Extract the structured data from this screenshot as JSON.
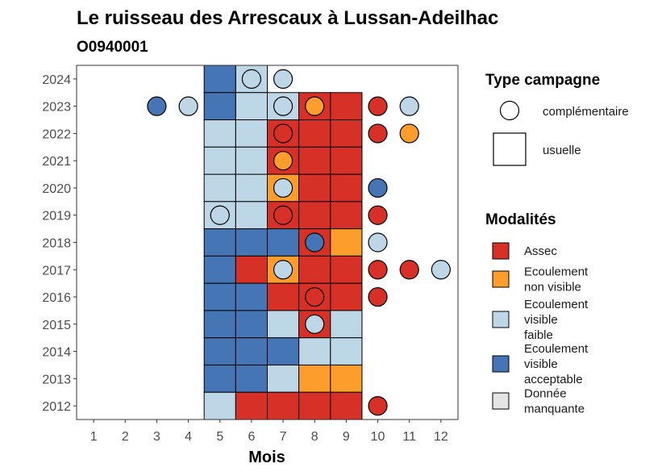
{
  "chart_data": {
    "type": "heatmap",
    "title": "Le ruisseau des Arrescaux à Lussan-Adeilhac",
    "subtitle": "O0940001",
    "xlabel": "Mois",
    "ylabel": "",
    "x_ticks": [
      1,
      2,
      3,
      4,
      5,
      6,
      7,
      8,
      9,
      10,
      11,
      12
    ],
    "y_ticks": [
      2012,
      2013,
      2014,
      2015,
      2016,
      2017,
      2018,
      2019,
      2020,
      2021,
      2022,
      2023,
      2024
    ],
    "legend_campagne": {
      "title": "Type campagne",
      "items": [
        {
          "key": "complementaire",
          "label": "complémentaire",
          "shape": "circle"
        },
        {
          "key": "usuelle",
          "label": "usuelle",
          "shape": "square"
        }
      ]
    },
    "legend_modalites": {
      "title": "Modalités",
      "items": [
        {
          "key": "assec",
          "label": [
            "Assec"
          ],
          "color": "#d73027"
        },
        {
          "key": "nonvisible",
          "label": [
            "Ecoulement",
            "non visible"
          ],
          "color": "#fc9d2c"
        },
        {
          "key": "faible",
          "label": [
            "Ecoulement",
            "visible",
            "faible"
          ],
          "color": "#bdd7e7"
        },
        {
          "key": "acceptable",
          "label": [
            "Ecoulement",
            "visible",
            "acceptable"
          ],
          "color": "#4575b4"
        },
        {
          "key": "manquante",
          "label": [
            "Donnée",
            "manquante"
          ],
          "color": "#e5e5e5"
        }
      ]
    },
    "usuelle": [
      {
        "year": 2024,
        "month": 5,
        "value": "acceptable"
      },
      {
        "year": 2024,
        "month": 6,
        "value": "faible"
      },
      {
        "year": 2023,
        "month": 5,
        "value": "acceptable"
      },
      {
        "year": 2023,
        "month": 6,
        "value": "faible"
      },
      {
        "year": 2023,
        "month": 7,
        "value": "faible"
      },
      {
        "year": 2023,
        "month": 8,
        "value": "assec"
      },
      {
        "year": 2023,
        "month": 9,
        "value": "assec"
      },
      {
        "year": 2022,
        "month": 5,
        "value": "faible"
      },
      {
        "year": 2022,
        "month": 6,
        "value": "faible"
      },
      {
        "year": 2022,
        "month": 7,
        "value": "assec"
      },
      {
        "year": 2022,
        "month": 8,
        "value": "assec"
      },
      {
        "year": 2022,
        "month": 9,
        "value": "assec"
      },
      {
        "year": 2021,
        "month": 5,
        "value": "faible"
      },
      {
        "year": 2021,
        "month": 6,
        "value": "faible"
      },
      {
        "year": 2021,
        "month": 7,
        "value": "assec"
      },
      {
        "year": 2021,
        "month": 8,
        "value": "assec"
      },
      {
        "year": 2021,
        "month": 9,
        "value": "assec"
      },
      {
        "year": 2020,
        "month": 5,
        "value": "faible"
      },
      {
        "year": 2020,
        "month": 6,
        "value": "faible"
      },
      {
        "year": 2020,
        "month": 7,
        "value": "nonvisible"
      },
      {
        "year": 2020,
        "month": 8,
        "value": "assec"
      },
      {
        "year": 2020,
        "month": 9,
        "value": "assec"
      },
      {
        "year": 2019,
        "month": 5,
        "value": "faible"
      },
      {
        "year": 2019,
        "month": 6,
        "value": "faible"
      },
      {
        "year": 2019,
        "month": 7,
        "value": "assec"
      },
      {
        "year": 2019,
        "month": 8,
        "value": "assec"
      },
      {
        "year": 2019,
        "month": 9,
        "value": "assec"
      },
      {
        "year": 2018,
        "month": 5,
        "value": "acceptable"
      },
      {
        "year": 2018,
        "month": 6,
        "value": "acceptable"
      },
      {
        "year": 2018,
        "month": 7,
        "value": "acceptable"
      },
      {
        "year": 2018,
        "month": 8,
        "value": "assec"
      },
      {
        "year": 2018,
        "month": 9,
        "value": "nonvisible"
      },
      {
        "year": 2017,
        "month": 5,
        "value": "acceptable"
      },
      {
        "year": 2017,
        "month": 6,
        "value": "assec"
      },
      {
        "year": 2017,
        "month": 7,
        "value": "nonvisible"
      },
      {
        "year": 2017,
        "month": 8,
        "value": "assec"
      },
      {
        "year": 2017,
        "month": 9,
        "value": "assec"
      },
      {
        "year": 2016,
        "month": 5,
        "value": "acceptable"
      },
      {
        "year": 2016,
        "month": 6,
        "value": "acceptable"
      },
      {
        "year": 2016,
        "month": 7,
        "value": "assec"
      },
      {
        "year": 2016,
        "month": 8,
        "value": "assec"
      },
      {
        "year": 2016,
        "month": 9,
        "value": "assec"
      },
      {
        "year": 2015,
        "month": 5,
        "value": "acceptable"
      },
      {
        "year": 2015,
        "month": 6,
        "value": "acceptable"
      },
      {
        "year": 2015,
        "month": 7,
        "value": "faible"
      },
      {
        "year": 2015,
        "month": 8,
        "value": "assec"
      },
      {
        "year": 2015,
        "month": 9,
        "value": "faible"
      },
      {
        "year": 2014,
        "month": 5,
        "value": "acceptable"
      },
      {
        "year": 2014,
        "month": 6,
        "value": "acceptable"
      },
      {
        "year": 2014,
        "month": 7,
        "value": "acceptable"
      },
      {
        "year": 2014,
        "month": 8,
        "value": "faible"
      },
      {
        "year": 2014,
        "month": 9,
        "value": "faible"
      },
      {
        "year": 2013,
        "month": 5,
        "value": "acceptable"
      },
      {
        "year": 2013,
        "month": 6,
        "value": "acceptable"
      },
      {
        "year": 2013,
        "month": 7,
        "value": "faible"
      },
      {
        "year": 2013,
        "month": 8,
        "value": "nonvisible"
      },
      {
        "year": 2013,
        "month": 9,
        "value": "nonvisible"
      },
      {
        "year": 2012,
        "month": 5,
        "value": "faible"
      },
      {
        "year": 2012,
        "month": 6,
        "value": "assec"
      },
      {
        "year": 2012,
        "month": 7,
        "value": "assec"
      },
      {
        "year": 2012,
        "month": 8,
        "value": "assec"
      },
      {
        "year": 2012,
        "month": 9,
        "value": "assec"
      }
    ],
    "complementaire": [
      {
        "year": 2024,
        "month": 6,
        "value": "faible"
      },
      {
        "year": 2024,
        "month": 7,
        "value": "faible"
      },
      {
        "year": 2023,
        "month": 3,
        "value": "acceptable"
      },
      {
        "year": 2023,
        "month": 4,
        "value": "faible"
      },
      {
        "year": 2023,
        "month": 7,
        "value": "faible"
      },
      {
        "year": 2023,
        "month": 8,
        "value": "nonvisible"
      },
      {
        "year": 2023,
        "month": 10,
        "value": "assec"
      },
      {
        "year": 2023,
        "month": 11,
        "value": "faible"
      },
      {
        "year": 2022,
        "month": 7,
        "value": "assec"
      },
      {
        "year": 2022,
        "month": 10,
        "value": "assec"
      },
      {
        "year": 2022,
        "month": 11,
        "value": "nonvisible"
      },
      {
        "year": 2021,
        "month": 7,
        "value": "nonvisible"
      },
      {
        "year": 2020,
        "month": 7,
        "value": "faible"
      },
      {
        "year": 2020,
        "month": 10,
        "value": "acceptable"
      },
      {
        "year": 2019,
        "month": 5,
        "value": "faible"
      },
      {
        "year": 2019,
        "month": 7,
        "value": "assec"
      },
      {
        "year": 2019,
        "month": 10,
        "value": "assec"
      },
      {
        "year": 2018,
        "month": 8,
        "value": "acceptable"
      },
      {
        "year": 2018,
        "month": 10,
        "value": "faible"
      },
      {
        "year": 2017,
        "month": 7,
        "value": "faible"
      },
      {
        "year": 2017,
        "month": 10,
        "value": "assec"
      },
      {
        "year": 2017,
        "month": 11,
        "value": "assec"
      },
      {
        "year": 2017,
        "month": 12,
        "value": "faible"
      },
      {
        "year": 2016,
        "month": 8,
        "value": "assec"
      },
      {
        "year": 2016,
        "month": 10,
        "value": "assec"
      },
      {
        "year": 2015,
        "month": 8,
        "value": "faible"
      },
      {
        "year": 2012,
        "month": 10,
        "value": "assec"
      }
    ]
  }
}
